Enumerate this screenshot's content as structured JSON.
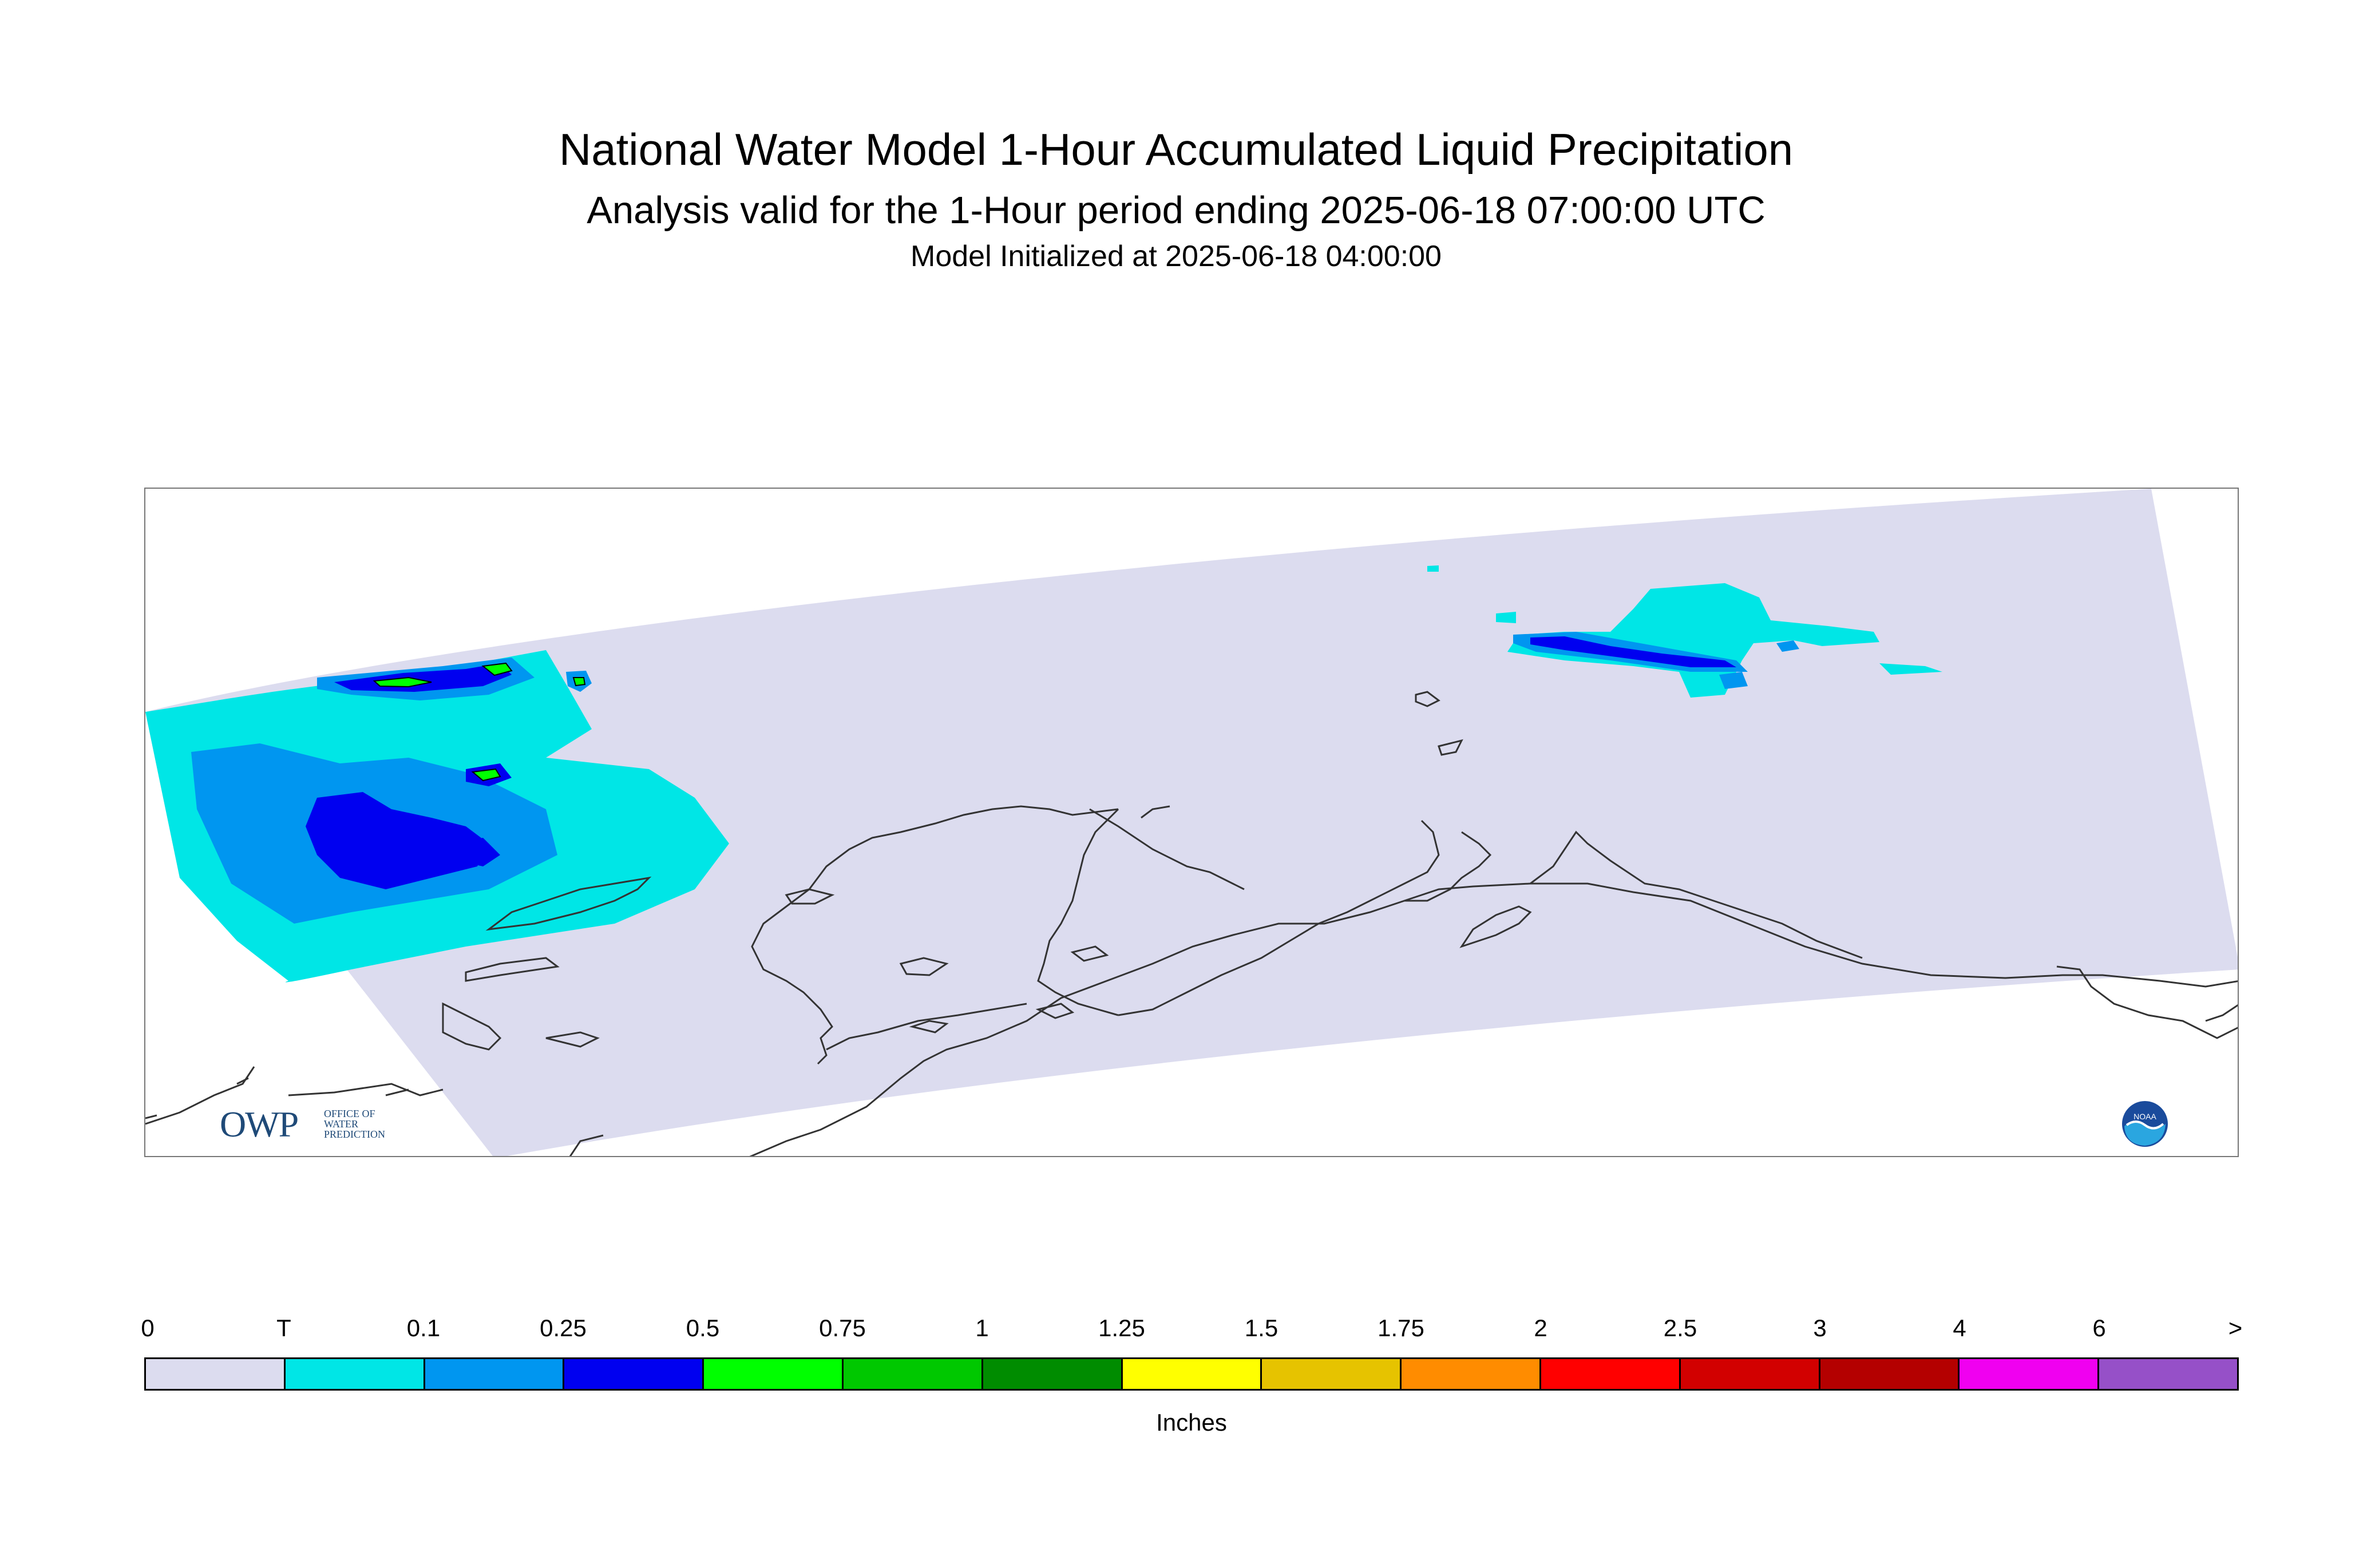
{
  "header": {
    "title": "National Water Model 1-Hour Accumulated Liquid Precipitation",
    "subtitle": "Analysis valid for the 1-Hour period ending 2025-06-18 07:00:00 UTC",
    "init": "Model Initialized at 2025-06-18 04:00:00"
  },
  "logos": {
    "owp_text": "OWP",
    "owp_line1": "OFFICE OF",
    "owp_line2": "WATER",
    "owp_line3": "PREDICTION",
    "noaa_text": "NOAA"
  },
  "colors": {
    "domain_fill": "#dcdcef",
    "coast": "#333333"
  },
  "legend": {
    "units": "Inches",
    "labels": [
      "0",
      "T",
      "0.1",
      "0.25",
      "0.5",
      "0.75",
      "1",
      "1.25",
      "1.5",
      "1.75",
      "2",
      "2.5",
      "3",
      "4",
      "6",
      ">"
    ],
    "colors": [
      "#dcdcef",
      "#00e6e6",
      "#0096f0",
      "#0000f0",
      "#00ff00",
      "#00c800",
      "#008c00",
      "#ffff00",
      "#e6c300",
      "#ff8c00",
      "#ff0000",
      "#d20000",
      "#b40000",
      "#f000f0",
      "#9650c8"
    ]
  }
}
